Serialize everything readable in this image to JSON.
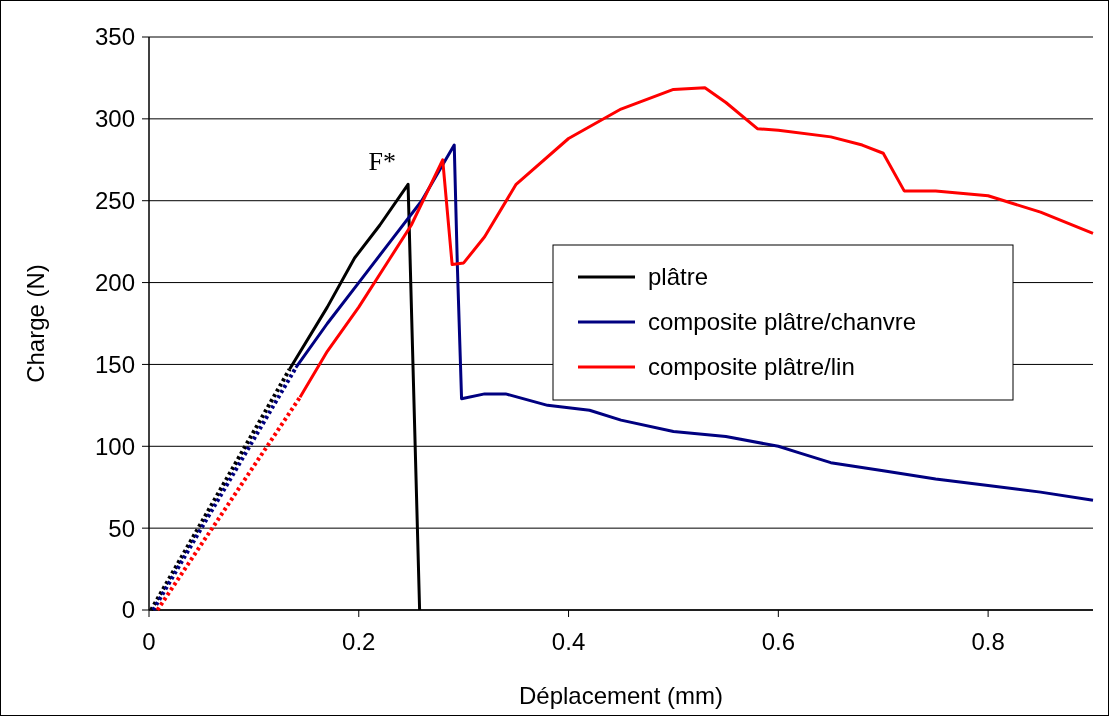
{
  "chart_data": {
    "type": "line",
    "xlabel": "Déplacement (mm)",
    "ylabel": "Charge (N)",
    "xlim": [
      0,
      0.9
    ],
    "xticks": [
      0,
      0.2,
      0.4,
      0.6,
      0.8
    ],
    "ylim": [
      0,
      350
    ],
    "yticks": [
      0,
      50,
      100,
      150,
      200,
      250,
      300,
      350
    ],
    "grid": "y",
    "legend": "right",
    "marker": "none",
    "annotations": [
      {
        "text": "F*",
        "x": 0.247,
        "y": 260
      }
    ],
    "series": [
      {
        "color": "#000000",
        "line_style": "dotted",
        "x": [
          0.002,
          0.134
        ],
        "values": [
          0,
          147
        ]
      },
      {
        "color": "#000080",
        "line_style": "dotted",
        "x": [
          0.004,
          0.14
        ],
        "values": [
          0,
          148
        ]
      },
      {
        "color": "#ff0000",
        "line_style": "dotted",
        "x": [
          0.008,
          0.144
        ],
        "values": [
          0,
          130
        ]
      },
      {
        "name": "plâtre",
        "color": "#000000",
        "line_style": "solid",
        "x": [
          0.134,
          0.17,
          0.196,
          0.22,
          0.247,
          0.258
        ],
        "values": [
          147,
          185,
          215,
          235,
          260,
          0
        ]
      },
      {
        "name": "composite plâtre/chanvre",
        "color": "#000080",
        "line_style": "solid",
        "x": [
          0.14,
          0.17,
          0.2,
          0.23,
          0.26,
          0.291,
          0.294,
          0.298,
          0.32,
          0.34,
          0.38,
          0.42,
          0.45,
          0.5,
          0.55,
          0.6,
          0.62,
          0.65,
          0.7,
          0.75,
          0.8,
          0.85,
          0.9
        ],
        "values": [
          148,
          175,
          200,
          225,
          250,
          284,
          210,
          129,
          132,
          132,
          125,
          122,
          116,
          109,
          106,
          100,
          96,
          90,
          85,
          80,
          76,
          72,
          67
        ]
      },
      {
        "name": "composite plâtre/lin",
        "color": "#ff0000",
        "line_style": "solid",
        "x": [
          0.144,
          0.17,
          0.2,
          0.23,
          0.25,
          0.28,
          0.289,
          0.3,
          0.32,
          0.35,
          0.4,
          0.45,
          0.5,
          0.53,
          0.55,
          0.58,
          0.6,
          0.65,
          0.68,
          0.7,
          0.72,
          0.75,
          0.8,
          0.85,
          0.9
        ],
        "values": [
          130,
          158,
          185,
          215,
          235,
          275,
          211,
          212,
          228,
          260,
          288,
          306,
          318,
          319,
          310,
          294,
          293,
          289,
          284,
          279,
          256,
          256,
          253,
          243,
          230
        ]
      }
    ]
  }
}
